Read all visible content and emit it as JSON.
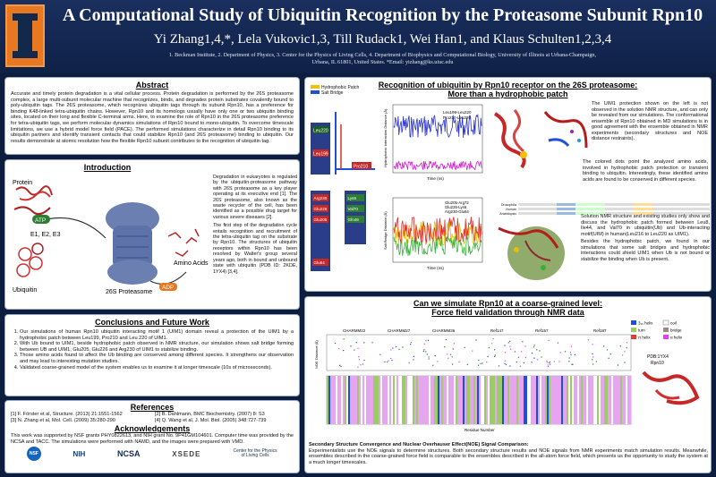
{
  "header": {
    "title": "A Computational Study of Ubiquitin Recognition by the Proteasome Subunit Rpn10",
    "authors": "Yi Zhang1,4,*, Lela Vukovic1,3, Till Rudack1, Wei Han1, and Klaus Schulten1,2,3,4",
    "affiliations_1": "1. Beckman Institute, 2. Department of Physics, 3. Center for the Physics of Living Cells, 4. Department of Biophysics and Computational Biology, University of Illinois at Urbana-Champaign,",
    "affiliations_2": "Urbana, IL 61801, United States. *Email: yizhang@ks.uiuc.edu"
  },
  "abstract": {
    "heading": "Abstract",
    "body": "Accurate and timely protein degradation is a vital cellular process. Protein degradation is performed by the 26S proteasome complex, a large multi-subunit molecular machine that recognizes, binds, and degrades protein substrates covalently bound to poly-ubiquitin tags. The 26S proteasome, which recognizes ubiquitin tags through its subunit Rpn10, has a preference for binding K48-linked tetra-ubiquitin chains. However, Rpn10 and its homologs usually have only one or two ubiquitin binding sites, located on their long and flexible C-terminal arms. Here, to examine the role of Rpn10 in the 26S proteasome preference for tetra-ubiquitin tags, we perform molecular dynamics simulations of Rpn10 bound to mono-ubiquitin. To overcome timescale limitations, we use a hybrid model force field (PACE). The performed simulations characterize in detail Rpn10 binding to its ubiquitin partners and identify transient contacts that could stabilize Rpn10 (and 26S proteasome) binding to ubiquitin. Our results demonstrate at atomic resolution how the flexible Rpn10 subunit contributes to the recognition of ubiquitin tag."
  },
  "introduction": {
    "heading": "Introduction",
    "body": "Degradation in eukaryotes is regulated by the ubiquitin-proteasome pathway with 26S proteasome as a key player operating at its executive end [1]. The 26S proteasome, also known as the waste recycler of the cell, has been identified as a possible drug target for various severe diseases [2].",
    "body2": "The first step of the degradation cycle entails recognition and recruitment of the tetra-ubiquitin tag on the substrate by Rpn10. The structures of ubiquitin receptors within Rpn10 has been resolved by Walter's group several years ago, both in bound and unbound state with ubiquitin (PDB ID: 2KDE, 1YX4) [3,4].",
    "labels": {
      "protein": "Protein",
      "atp": "ATP",
      "e123": "E1, E2, E3",
      "ubiquitin": "Ubiquitin",
      "proteasome": "26S Proteasome",
      "adp": "ADP",
      "amino": "Amino Acids"
    }
  },
  "conclusions": {
    "heading": "Conclusions and Future Work",
    "items": [
      "Our simulations of human Rpn10 ubiquitin interacting motif 1 (UIM1) domain  reveal a protection of the UIM1 by a hydrophobic patch between Leu199, Pro210 and Leu 220 of UIM1.",
      "With Ub bound to UIM1, beside hydrophobic patch observed in NMR structure, our simulation shows salt bridge forming between UB and UIM1, Glu205, Glu226 and Arg230 of UIM1 to stabilize binding.",
      "Those amino acids found to affect the Ub binding are conserved among different species. It strengthens our observation and may lead to interesting mutation studies.",
      "Validated coarse-grained model of the system enables us to examine it at longer timescale (10s of microseconds)."
    ]
  },
  "references": {
    "heading": "References",
    "items": [
      "[1] F. Förster et al, Structure. (2013) 21:1551-1562",
      "[2] B. Dahlmann, BMC Biochemistry. (2007) 8: S3",
      "[3] N. Zhang et al, Mol. Cell. (2009) 35:280-290",
      "[4] Q. Wang et al, J. Mol. Biol. (2005) 348:727-739"
    ]
  },
  "acknowledgements": {
    "heading": "Acknowledgements",
    "body": "This work was supported by NSF grants PHY0822613, and NIH grant No. 9P41GM104601. Computer time was provided by the NCSA and TACC. The simulations were performed with NAMD, and the images were prepared with VMD.",
    "logos": [
      "NSF",
      "NIH",
      "NCSA",
      "XSEDE",
      "Center for the Physics of Living Cells"
    ]
  },
  "recognition": {
    "heading1": "Recognition of ubiquitin by Rpn10 receptor on the 26S proteasome:",
    "heading2": "More than a hydrophobic patch",
    "legend": [
      "Hydrophobic Patch",
      "Salt Bridge"
    ],
    "residues_hp": [
      "Leu220",
      "Leu199",
      "Pro210"
    ],
    "residues_sb": [
      "Arg230",
      "Glu226",
      "Glu205",
      "Lys6",
      "Val70",
      "Gln49",
      "Glu64"
    ],
    "plot1": {
      "ylabel": "Hydrophobic Interaction Distance (Å)",
      "xlabel": "Time (ns)",
      "series": [
        "Leu199-Leu220",
        "Pro210-Leu220"
      ]
    },
    "plot2": {
      "ylabel": "Salt Bridge Distance (Å)",
      "xlabel": "Time (ns)",
      "series": [
        "Glu205-Arg72",
        "Glu226-Lys6",
        "Arg230-Glu64"
      ]
    },
    "text1": "The UIM1 protection shown on the left is not observed in the solution NMR structure, and can only be revealed from our simulations. The conformational ensemble of Rpn10 obtained in MD simulations is in good agreement with the ensemble obtained in NMR experiments (secondary structures and NOE distance restraints).",
    "text2": "The colored dots point the analyzed amino acids, involved in hydrophobic patch protection or transient binding to ubiquitin. Interestingly, these identified amino acids are found to be conserved in different species.",
    "text3": "Solution NMR structure and existing studies only show and discuss the hydrophobic patch formed between Leu8, Ile44, and Val70 in ubiquitin(Ub) and Ub-interacting motif(UIM) in human(Leu216 to Leu220 as UIM1).",
    "text4": "Besides the hydrophobic patch, we found in our simulations that some salt bridges and hydrophobic interactions could shield UIM1 when Ub is not bound or stabilize the binding when Ub is present.",
    "species": [
      "Drosophila",
      "Human",
      "Arabidopsis"
    ]
  },
  "coarse": {
    "heading1": "Can we simulate Rpn10 at a coarse-grained level:",
    "heading2": "Force field validation through NMR data",
    "legend": [
      "3₁₀ helix",
      "turn",
      "π helix",
      "coil",
      "bridge",
      "α helix"
    ],
    "labels": [
      "CHARMM22",
      "CHARMM27",
      "CHARMM36",
      "Ref147",
      "Ref157",
      "Ref187",
      "PDB:1YX4",
      "Rpn10",
      "Residue Number",
      "NOE Distance (Å)"
    ],
    "caption_title": "Secondary Structure Convergence and Nuclear Overhauser Effect(NOE) Signal Comparison:",
    "caption": "Experimentalists use the NOE signals to determine structures. Both secondary structure results and NOE signals from NMR experiments match simulation results. Meanwhile, ensembles described in the coarse-grained force field is comparable to the ensembles described in the all-atom force field, which presents us the opportunity to study the system at a much longer timescales."
  },
  "colors": {
    "background": "#0c1d3e",
    "accent": "#e87722",
    "panel": "#ffffff"
  }
}
